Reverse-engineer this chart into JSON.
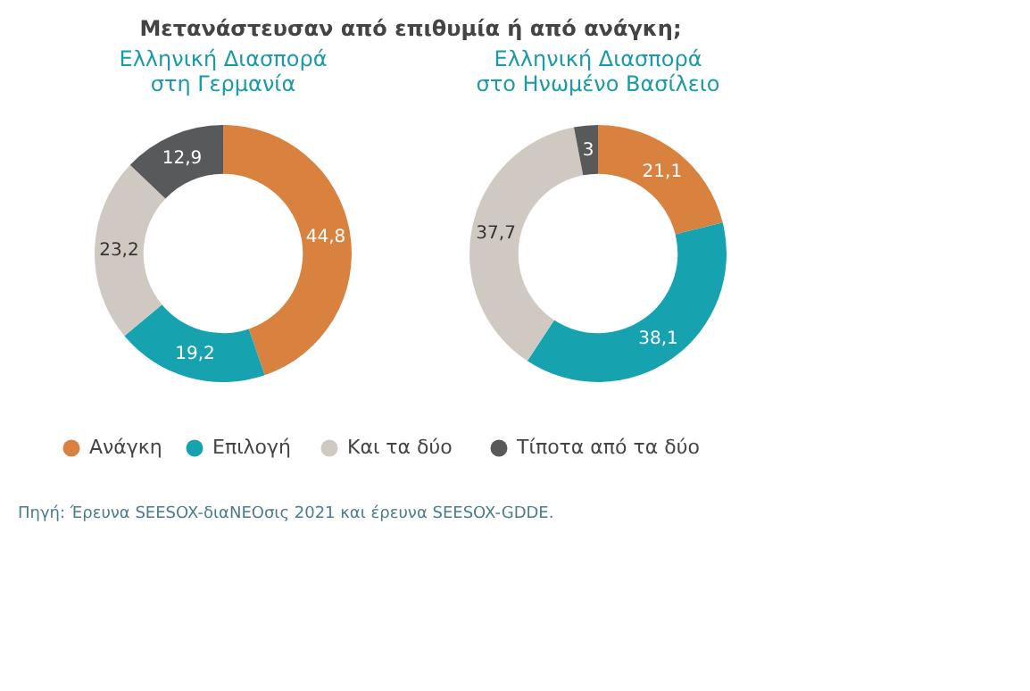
{
  "chart_data": [
    {
      "type": "donut",
      "title": "Μετανάστευσαν από επιθυμία ή από ανάγκη;",
      "subtitle": "Ελληνική Διασπορά\nστη Γερμανία",
      "categories": [
        "Ανάγκη",
        "Επιλογή",
        "Και τα δύο",
        "Τίποτα από τα δύο"
      ],
      "values": [
        44.8,
        19.2,
        23.2,
        12.9
      ],
      "value_labels": [
        "44,8",
        "19,2",
        "23,2",
        "12,9"
      ],
      "colors": [
        "#d9823f",
        "#17a2b0",
        "#cfc9c2",
        "#58595b"
      ],
      "legend": "bottom",
      "annotations": [
        "Πηγή: Έρευνα SEESOX-διαΝΕΟσις 2021 και έρευνα SEESOX-GDDE."
      ]
    },
    {
      "type": "donut",
      "subtitle": "Ελληνική Διασπορά\nστο Ηνωμένο Βασίλειο",
      "values": [
        21.1,
        38.1,
        37.7,
        3
      ],
      "value_labels": [
        "21,1",
        "38,1",
        "37,7",
        "3"
      ],
      "colors": [
        "#d9823f",
        "#17a2b0",
        "#cfc9c2",
        "#58595b"
      ]
    }
  ]
}
